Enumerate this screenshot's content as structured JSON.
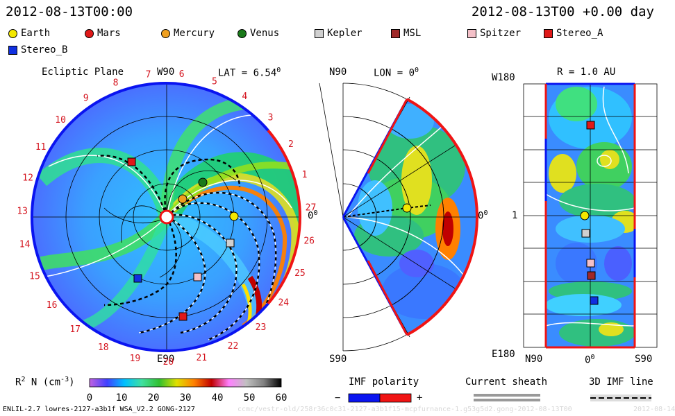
{
  "header": {
    "timestamp_left": "2012-08-13T00:00",
    "timestamp_right": "2012-08-13T00 +0.00 day"
  },
  "legend": [
    {
      "label": "Earth",
      "shape": "circle",
      "color": "#f4e800"
    },
    {
      "label": "Mars",
      "shape": "circle",
      "color": "#e01818"
    },
    {
      "label": "Mercury",
      "shape": "circle",
      "color": "#f0a020"
    },
    {
      "label": "Venus",
      "shape": "circle",
      "color": "#1a7a1a"
    },
    {
      "label": "Kepler",
      "shape": "square",
      "color": "#d0d0d0"
    },
    {
      "label": "MSL",
      "shape": "square",
      "color": "#a02828"
    },
    {
      "label": "Spitzer",
      "shape": "square",
      "color": "#f4c0c8"
    },
    {
      "label": "Stereo_A",
      "shape": "square",
      "color": "#e01818"
    },
    {
      "label": "Stereo_B",
      "shape": "square",
      "color": "#1030e0"
    }
  ],
  "panels": {
    "ecliptic": {
      "title": "Ecliptic Plane",
      "top_label": "W90",
      "bottom_label": "E90",
      "right_label": "0",
      "right_label_sup": "0",
      "lat_label": "LAT = 6.54",
      "lat_sup": "0",
      "carrington_ticks": [
        "19",
        "20",
        "21",
        "22",
        "23",
        "24",
        "25",
        "26",
        "27",
        "1",
        "2",
        "3",
        "4",
        "5",
        "6",
        "7",
        "8",
        "9",
        "10",
        "11",
        "12",
        "13",
        "14",
        "15",
        "16",
        "17",
        "18"
      ]
    },
    "meridional": {
      "top_label": "N90",
      "bottom_label": "S90",
      "right_label": "0",
      "right_label_sup": "0",
      "lon_label": "LON = 0",
      "lon_sup": "0"
    },
    "radial": {
      "title": "R = 1.0 AU",
      "y_top": "W180",
      "y_mid": "1",
      "y_bottom": "E180",
      "x_left": "N90",
      "x_mid": "0",
      "x_mid_sup": "0",
      "x_right": "S90"
    }
  },
  "colorbar": {
    "label": "R",
    "label_sup": "2",
    "label_rest": " N (cm",
    "label_exp": "-3",
    "label_end": ")",
    "ticks": [
      "0",
      "10",
      "20",
      "30",
      "40",
      "50",
      "60"
    ],
    "stops": [
      "#c060e0",
      "#4040ff",
      "#00c0ff",
      "#40e0a0",
      "#30c030",
      "#e0e000",
      "#ff8000",
      "#c00000",
      "#ff80ff",
      "#c0c0c0",
      "#808080",
      "#000000"
    ]
  },
  "bottom_legend": {
    "imf_title": "IMF polarity",
    "imf_minus": "−",
    "imf_plus": "+",
    "imf_neg_color": "#0a14f0",
    "imf_pos_color": "#f01414",
    "sheath_title": "Current sheath",
    "imf_line_title": "3D IMF line"
  },
  "footer": {
    "model_info": "ENLIL-2.7 lowres-2127-a3b1f WSA_V2.2 GONG-2127",
    "run_path": "ccmc/vestr-old/258r36c0c31-2127-a3b1f15-mcpfurnance-1.g53g5d2.gong-2012-08-13T00",
    "date_stub": "2012-08-14"
  },
  "chart_data": {
    "type": "heatmap",
    "quantity": "R2 N (cm-3)",
    "colorbar_range": [
      0,
      60
    ],
    "colorbar_ticks": [
      0,
      10,
      20,
      30,
      40,
      50,
      60
    ],
    "bodies_ecliptic": [
      {
        "name": "Earth",
        "color": "#f4e800",
        "shape": "circle"
      },
      {
        "name": "Mars",
        "color": "#e01818",
        "shape": "circle"
      },
      {
        "name": "Mercury",
        "color": "#f0a020",
        "shape": "circle"
      },
      {
        "name": "Venus",
        "color": "#1a7a1a",
        "shape": "circle"
      },
      {
        "name": "Kepler",
        "color": "#d0d0d0",
        "shape": "square"
      },
      {
        "name": "MSL",
        "color": "#a02828",
        "shape": "square"
      },
      {
        "name": "Spitzer",
        "color": "#f4c0c8",
        "shape": "square"
      },
      {
        "name": "Stereo_A",
        "color": "#e01818",
        "shape": "square"
      },
      {
        "name": "Stereo_B",
        "color": "#1030e0",
        "shape": "square"
      }
    ]
  }
}
